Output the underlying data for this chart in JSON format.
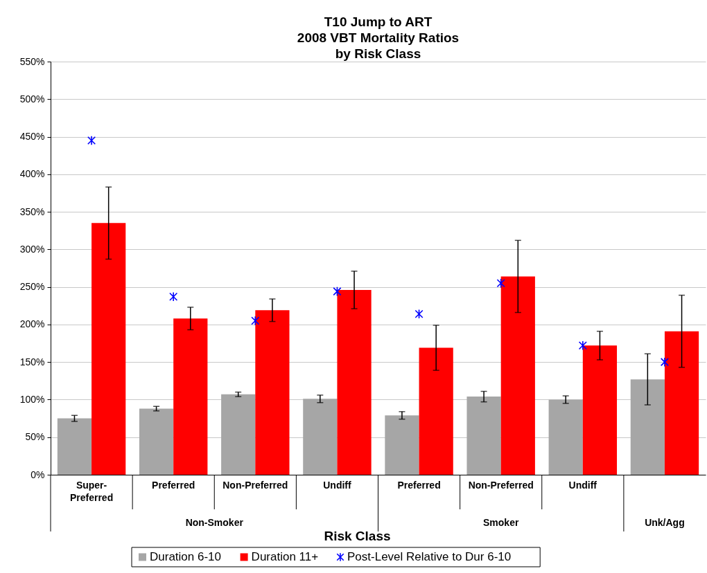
{
  "chart_data": {
    "type": "bar",
    "title": "T10 Jump to ART\n2008 VBT Mortality Ratios\nby Risk Class",
    "xlabel": "Risk Class",
    "categories": [
      "Super-\nPreferred",
      "Preferred",
      "Non-Preferred",
      "Undiff",
      "Preferred",
      "Non-Preferred",
      "Undiff",
      null
    ],
    "annotations": [
      "Non-Smoker",
      "Smoker",
      "Unk/Agg"
    ],
    "series": [
      {
        "name": "Duration 6-10",
        "color": "#a6a6a6",
        "values": [
          75,
          88,
          107,
          101,
          79,
          104,
          100,
          127
        ],
        "errors": [
          4,
          3,
          3,
          5,
          5,
          7,
          5,
          34
        ]
      },
      {
        "name": "Duration 11+",
        "color": "#ff0000",
        "values": [
          335,
          208,
          219,
          246,
          169,
          264,
          172,
          191
        ],
        "errors": [
          48,
          15,
          15,
          25,
          30,
          48,
          19,
          48
        ]
      },
      {
        "name": "Post-Level Relative to Dur 6-10",
        "type": "scatter",
        "marker": "cross",
        "color": "#0000ff",
        "values": [
          445,
          237,
          205,
          244,
          214,
          255,
          172,
          150
        ]
      }
    ],
    "ylim": [
      0,
      550
    ],
    "yticks": [
      {
        "value": 0,
        "label": "0%"
      },
      {
        "value": 50,
        "label": "50%"
      },
      {
        "value": 100,
        "label": "100%"
      },
      {
        "value": 150,
        "label": "150%"
      },
      {
        "value": 200,
        "label": "200%"
      },
      {
        "value": 250,
        "label": "250%"
      },
      {
        "value": 300,
        "label": "300%"
      },
      {
        "value": 350,
        "label": "350%"
      },
      {
        "value": 400,
        "label": "400%"
      },
      {
        "value": 450,
        "label": "450%"
      },
      {
        "value": 500,
        "label": "500%"
      },
      {
        "value": 550,
        "label": "550%"
      }
    ],
    "grid": "y",
    "legend": "bottom"
  }
}
